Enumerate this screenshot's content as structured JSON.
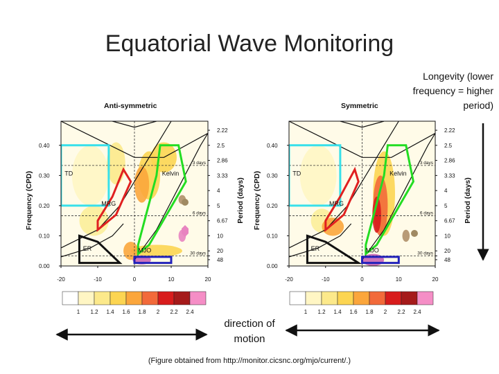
{
  "title": "Equatorial Wave Monitoring",
  "note": "Longevity (lower frequency = higher period)",
  "direction": "direction of motion",
  "source": "(Figure obtained from http://monitor.cicsnc.org/mjo/current/.)",
  "chart_data": [
    {
      "type": "heatmap",
      "title": "Anti-symmetric",
      "xlabel": "",
      "ylabel": "Frequency (CPD)",
      "y2label": "Period (days)",
      "xlim": [
        -20,
        20
      ],
      "ylim": [
        0,
        0.48
      ],
      "xticks": [
        "-20",
        "-10",
        "0",
        "10",
        "20"
      ],
      "yticks": [
        {
          "v": 0.0,
          "t": "0.00"
        },
        {
          "v": 0.1,
          "t": "0.10"
        },
        {
          "v": 0.2,
          "t": "0.20"
        },
        {
          "v": 0.3,
          "t": "0.30"
        },
        {
          "v": 0.4,
          "t": "0.40"
        }
      ],
      "periods": [
        {
          "v": 0.45,
          "t": "2.22"
        },
        {
          "v": 0.4,
          "t": "2.5"
        },
        {
          "v": 0.35,
          "t": "2.86"
        },
        {
          "v": 0.3,
          "t": "3.33"
        },
        {
          "v": 0.25,
          "t": "4"
        },
        {
          "v": 0.2,
          "t": "5"
        },
        {
          "v": 0.15,
          "t": "6.67"
        },
        {
          "v": 0.1,
          "t": "10"
        },
        {
          "v": 0.05,
          "t": "20"
        },
        {
          "v": 0.0333,
          "t": "30 days"
        },
        {
          "v": 0.0208,
          "t": "48"
        }
      ],
      "dashed_lines": [
        {
          "v": 0.3333,
          "t": "3 days"
        },
        {
          "v": 0.1667,
          "t": "6 days"
        },
        {
          "v": 0.0333,
          "t": "30 days"
        }
      ],
      "regions": [
        {
          "label": "TD",
          "color": "#37e0ea",
          "points": [
            [
              -20,
              0.2
            ],
            [
              -7,
              0.2
            ],
            [
              -7,
              0.4
            ],
            [
              -20,
              0.4
            ]
          ]
        },
        {
          "label": "MRG",
          "color": "#e02020",
          "points": [
            [
              -10,
              0.12
            ],
            [
              -5,
              0.17
            ],
            [
              -1,
              0.28
            ],
            [
              -3,
              0.32
            ],
            [
              -6,
              0.23
            ],
            [
              -10,
              0.15
            ]
          ]
        },
        {
          "label": "Kelvin",
          "color": "#22dd22",
          "points": [
            [
              1,
              0.04
            ],
            [
              4,
              0.07
            ],
            [
              14,
              0.28
            ],
            [
              12,
              0.4
            ],
            [
              7,
              0.4
            ],
            [
              6,
              0.3
            ],
            [
              1,
              0.07
            ]
          ]
        },
        {
          "label": "ER",
          "color": "#111111",
          "points": [
            [
              -15,
              0.01
            ],
            [
              -15,
              0.1
            ],
            [
              -10,
              0.08
            ],
            [
              -4,
              0.01
            ]
          ]
        },
        {
          "label": "MJO",
          "color": "#2222bb",
          "points": [
            [
              0,
              0.01
            ],
            [
              10,
              0.01
            ],
            [
              10,
              0.03
            ],
            [
              0,
              0.03
            ]
          ]
        }
      ],
      "blobs": [
        {
          "x": -12,
          "y": 0.3,
          "rx": 5,
          "ry": 0.1,
          "c": "#fff6c4"
        },
        {
          "x": -11,
          "y": 0.15,
          "rx": 4,
          "ry": 0.05,
          "c": "#fcee9a"
        },
        {
          "x": -5,
          "y": 0.34,
          "rx": 2.5,
          "ry": 0.07,
          "c": "#fce98b"
        },
        {
          "x": 4,
          "y": 0.3,
          "rx": 3,
          "ry": 0.08,
          "c": "#fcd552"
        },
        {
          "x": 2,
          "y": 0.27,
          "rx": 2,
          "ry": 0.06,
          "c": "#fba63c"
        },
        {
          "x": 8,
          "y": 0.36,
          "rx": 3.5,
          "ry": 0.05,
          "c": "#fcd552"
        },
        {
          "x": 6,
          "y": 0.05,
          "rx": 7,
          "ry": 0.02,
          "c": "#fcd552"
        },
        {
          "x": -1,
          "y": 0.05,
          "rx": 2,
          "ry": 0.03,
          "c": "#fba63c"
        },
        {
          "x": 2,
          "y": 0.02,
          "rx": 2.5,
          "ry": 0.015,
          "c": "#c865b6"
        },
        {
          "x": 13,
          "y": 0.1,
          "rx": 1,
          "ry": 0.02,
          "c": "#e984c1"
        },
        {
          "x": 13,
          "y": 0.22,
          "rx": 1,
          "ry": 0.015,
          "c": "#b0906a"
        }
      ]
    },
    {
      "type": "heatmap",
      "title": "Symmetric",
      "xlabel": "",
      "ylabel": "Frequency (CPD)",
      "y2label": "Period (days)",
      "xlim": [
        -20,
        20
      ],
      "ylim": [
        0,
        0.48
      ],
      "xticks": [
        "-20",
        "-10",
        "0",
        "10",
        "20"
      ],
      "yticks": [
        {
          "v": 0.0,
          "t": "0.00"
        },
        {
          "v": 0.1,
          "t": "0.10"
        },
        {
          "v": 0.2,
          "t": "0.20"
        },
        {
          "v": 0.3,
          "t": "0.30"
        },
        {
          "v": 0.4,
          "t": "0.40"
        }
      ],
      "periods": [
        {
          "v": 0.45,
          "t": "2.22"
        },
        {
          "v": 0.4,
          "t": "2.5"
        },
        {
          "v": 0.35,
          "t": "2.86"
        },
        {
          "v": 0.3,
          "t": "3.33"
        },
        {
          "v": 0.25,
          "t": "4"
        },
        {
          "v": 0.2,
          "t": "5"
        },
        {
          "v": 0.15,
          "t": "6.67"
        },
        {
          "v": 0.1,
          "t": "10"
        },
        {
          "v": 0.05,
          "t": "20"
        },
        {
          "v": 0.0333,
          "t": "30 days"
        },
        {
          "v": 0.0208,
          "t": "48"
        }
      ],
      "dashed_lines": [
        {
          "v": 0.3333,
          "t": "3 days"
        },
        {
          "v": 0.1667,
          "t": "6 days"
        },
        {
          "v": 0.0333,
          "t": "30 days"
        }
      ],
      "regions": [
        {
          "label": "TD",
          "color": "#37e0ea",
          "points": [
            [
              -20,
              0.2
            ],
            [
              -6,
              0.2
            ],
            [
              -6,
              0.4
            ],
            [
              -20,
              0.4
            ]
          ]
        },
        {
          "label": "MRG",
          "color": "#e02020",
          "points": [
            [
              -10,
              0.12
            ],
            [
              -5,
              0.17
            ],
            [
              -1,
              0.28
            ],
            [
              -2,
              0.32
            ],
            [
              -6,
              0.23
            ],
            [
              -10,
              0.15
            ]
          ]
        },
        {
          "label": "Kelvin",
          "color": "#22dd22",
          "points": [
            [
              1,
              0.04
            ],
            [
              4,
              0.07
            ],
            [
              14,
              0.28
            ],
            [
              12,
              0.4
            ],
            [
              7,
              0.4
            ],
            [
              6,
              0.3
            ],
            [
              1,
              0.07
            ]
          ]
        },
        {
          "label": "ER",
          "color": "#111111",
          "points": [
            [
              -15,
              0.01
            ],
            [
              -15,
              0.1
            ],
            [
              -10,
              0.08
            ],
            [
              -1,
              0.01
            ]
          ]
        },
        {
          "label": "MJO",
          "color": "#2222bb",
          "points": [
            [
              0,
              0.01
            ],
            [
              10,
              0.01
            ],
            [
              10,
              0.03
            ],
            [
              0,
              0.03
            ]
          ]
        }
      ],
      "blobs": [
        {
          "x": -12,
          "y": 0.3,
          "rx": 5,
          "ry": 0.1,
          "c": "#fff6c4"
        },
        {
          "x": -11,
          "y": 0.15,
          "rx": 3,
          "ry": 0.04,
          "c": "#fcee9a"
        },
        {
          "x": -8,
          "y": 0.13,
          "rx": 3,
          "ry": 0.03,
          "c": "#fba63c"
        },
        {
          "x": 6,
          "y": 0.24,
          "rx": 3,
          "ry": 0.14,
          "c": "#fcd552"
        },
        {
          "x": 5,
          "y": 0.2,
          "rx": 2,
          "ry": 0.1,
          "c": "#f26a3a"
        },
        {
          "x": 4,
          "y": 0.17,
          "rx": 1.2,
          "ry": 0.06,
          "c": "#d81c1c"
        },
        {
          "x": 3,
          "y": 0.02,
          "rx": 3,
          "ry": 0.02,
          "c": "#c865b6"
        },
        {
          "x": 12,
          "y": 0.1,
          "rx": 1,
          "ry": 0.02,
          "c": "#b0906a"
        }
      ]
    }
  ],
  "colorbar": {
    "labels": [
      "1",
      "1.2",
      "1.4",
      "1.6",
      "1.8",
      "2",
      "2.2",
      "2.4"
    ],
    "colors": [
      "#ffffff",
      "#fff6c4",
      "#fce98b",
      "#fcd552",
      "#fba63c",
      "#f26a3a",
      "#d81c1c",
      "#a51a1a",
      "#f58ec6"
    ]
  }
}
